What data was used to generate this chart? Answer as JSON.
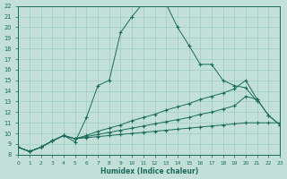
{
  "xlabel": "Humidex (Indice chaleur)",
  "bg_color": "#c2e0d8",
  "line_color": "#1a6b5a",
  "grid_color": "#9ecec4",
  "xlim": [
    0,
    23
  ],
  "ylim": [
    8,
    22
  ],
  "lines": [
    {
      "x": [
        0,
        1,
        2,
        3,
        4,
        5,
        6,
        7,
        8,
        9,
        10,
        11,
        12,
        13,
        14,
        15,
        16,
        17,
        18,
        19,
        20,
        21
      ],
      "y": [
        8.7,
        8.3,
        8.7,
        9.3,
        9.8,
        9.2,
        11.5,
        14.5,
        15.0,
        19.5,
        21.0,
        22.3,
        22.3,
        22.2,
        20.0,
        18.3,
        16.5,
        16.5,
        15.0,
        14.5,
        14.3,
        13.0
      ]
    },
    {
      "x": [
        0,
        1,
        2,
        3,
        4,
        5,
        6,
        7,
        8,
        9,
        10,
        11,
        12,
        13,
        14,
        15,
        16,
        17,
        18,
        19,
        20,
        21,
        22,
        23
      ],
      "y": [
        8.7,
        8.3,
        8.7,
        9.3,
        9.8,
        9.5,
        9.8,
        10.2,
        10.5,
        10.8,
        11.2,
        11.5,
        11.8,
        12.2,
        12.5,
        12.8,
        13.2,
        13.5,
        13.8,
        14.2,
        15.0,
        13.2,
        11.7,
        10.8
      ]
    },
    {
      "x": [
        0,
        1,
        2,
        3,
        4,
        5,
        6,
        7,
        8,
        9,
        10,
        11,
        12,
        13,
        14,
        15,
        16,
        17,
        18,
        19,
        20,
        21,
        22,
        23
      ],
      "y": [
        8.7,
        8.3,
        8.7,
        9.3,
        9.8,
        9.5,
        9.7,
        9.9,
        10.1,
        10.3,
        10.5,
        10.7,
        10.9,
        11.1,
        11.3,
        11.5,
        11.8,
        12.0,
        12.3,
        12.6,
        13.5,
        13.2,
        11.7,
        10.8
      ]
    },
    {
      "x": [
        0,
        1,
        2,
        3,
        4,
        5,
        6,
        7,
        8,
        9,
        10,
        11,
        12,
        13,
        14,
        15,
        16,
        17,
        18,
        19,
        20,
        21,
        22,
        23
      ],
      "y": [
        8.7,
        8.3,
        8.7,
        9.3,
        9.8,
        9.5,
        9.6,
        9.7,
        9.8,
        9.9,
        10.0,
        10.1,
        10.2,
        10.3,
        10.4,
        10.5,
        10.6,
        10.7,
        10.8,
        10.9,
        11.0,
        11.0,
        11.0,
        11.0
      ]
    }
  ]
}
